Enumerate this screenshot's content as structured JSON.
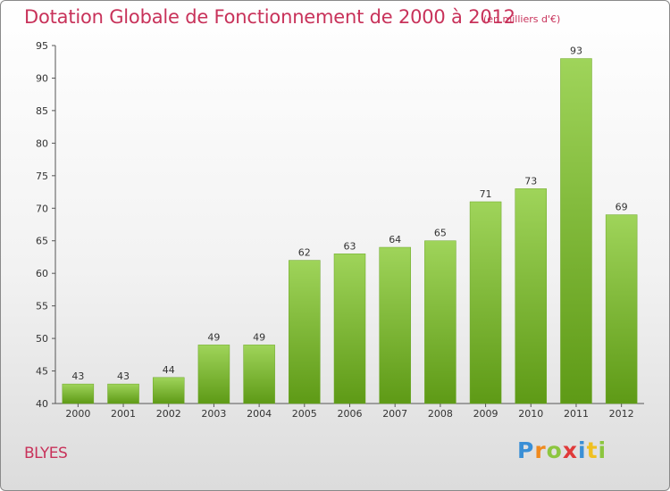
{
  "header": {
    "title": "Dotation Globale de Fonctionnement de 2000 à 2012",
    "subtitle": "(en milliers d'€)"
  },
  "footer": {
    "place": "BLYES",
    "logo_text": "Proxiti"
  },
  "colors": {
    "title": "#c8325a",
    "bar_top": "#9fd45a",
    "bar_bottom": "#5e9a16"
  },
  "chart_data": {
    "type": "bar",
    "title": "Dotation Globale de Fonctionnement de 2000 à 2012",
    "subtitle": "(en milliers d'€)",
    "categories": [
      "2000",
      "2001",
      "2002",
      "2003",
      "2004",
      "2005",
      "2006",
      "2007",
      "2008",
      "2009",
      "2010",
      "2011",
      "2012"
    ],
    "values": [
      43,
      43,
      44,
      49,
      49,
      62,
      63,
      64,
      65,
      71,
      73,
      93,
      69
    ],
    "xlabel": "",
    "ylabel": "",
    "ylim": [
      40,
      95
    ],
    "yticks": [
      40,
      45,
      50,
      55,
      60,
      65,
      70,
      75,
      80,
      85,
      90,
      95
    ],
    "grid": false,
    "legend": "none"
  }
}
